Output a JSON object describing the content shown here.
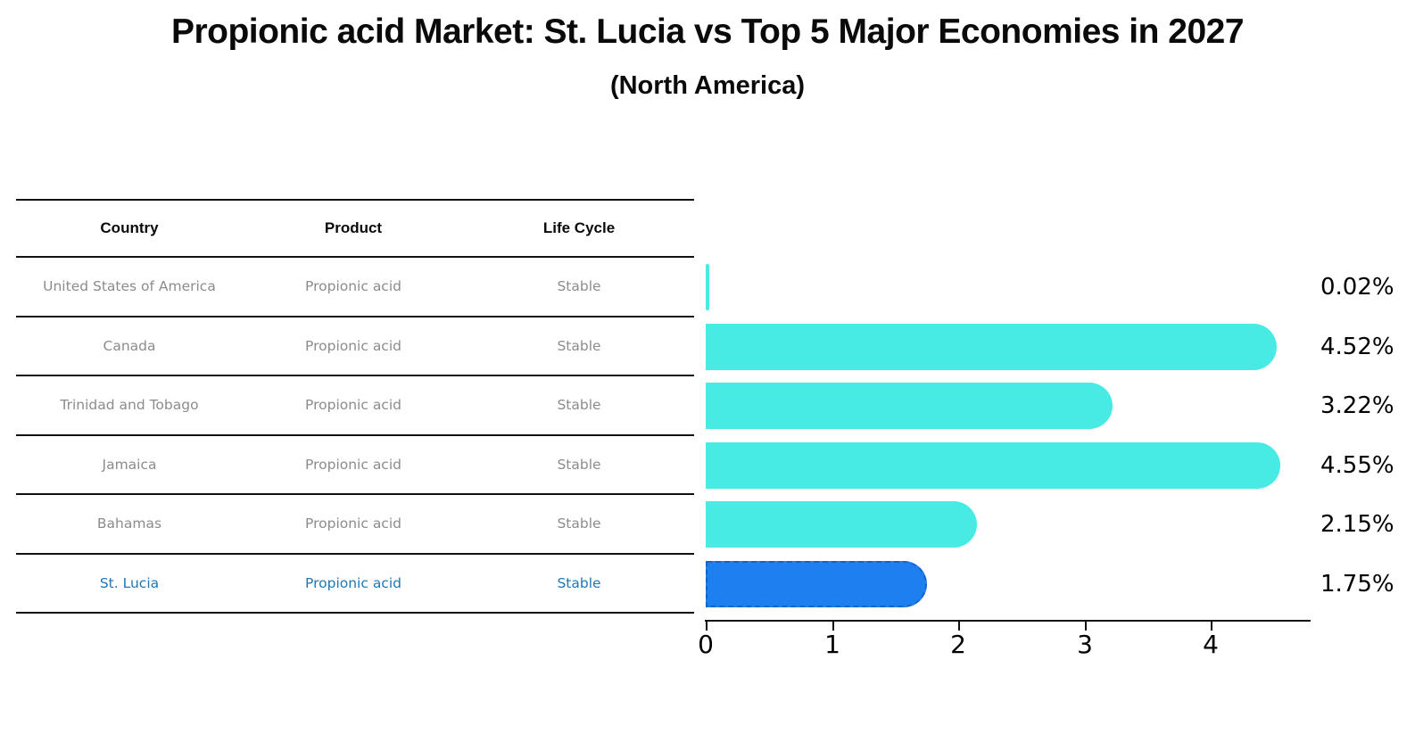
{
  "title": "Propionic acid Market: St. Lucia vs Top 5 Major Economies in 2027",
  "subtitle": "(North America)",
  "table": {
    "headers": [
      "Country",
      "Product",
      "Life Cycle"
    ],
    "rows": [
      {
        "country": "United States of America",
        "product": "Propionic acid",
        "life_cycle": "Stable",
        "highlighted": false
      },
      {
        "country": "Canada",
        "product": "Propionic acid",
        "life_cycle": "Stable",
        "highlighted": false
      },
      {
        "country": "Trinidad and Tobago",
        "product": "Propionic acid",
        "life_cycle": "Stable",
        "highlighted": false
      },
      {
        "country": "Jamaica",
        "product": "Propionic acid",
        "life_cycle": "Stable",
        "highlighted": false
      },
      {
        "country": "Bahamas",
        "product": "Propionic acid",
        "life_cycle": "Stable",
        "highlighted": false
      },
      {
        "country": "St. Lucia",
        "product": "Propionic acid",
        "life_cycle": "Stable",
        "highlighted": true
      }
    ]
  },
  "chart_data": {
    "type": "bar",
    "orientation": "horizontal",
    "title": "Propionic acid Market: St. Lucia vs Top 5 Major Economies in 2027",
    "subtitle": "(North America)",
    "categories": [
      "United States of America",
      "Canada",
      "Trinidad and Tobago",
      "Jamaica",
      "Bahamas",
      "St. Lucia"
    ],
    "values": [
      0.02,
      4.52,
      3.22,
      4.55,
      2.15,
      1.75
    ],
    "value_labels": [
      "0.02%",
      "4.52%",
      "3.22%",
      "4.55%",
      "2.15%",
      "1.75%"
    ],
    "highlight_index": 5,
    "xticks": [
      "0",
      "1",
      "2",
      "3",
      "4"
    ],
    "xlim": [
      0,
      4.8
    ],
    "grid": false,
    "legend": false,
    "colors": {
      "bar": "#48EBE4",
      "highlight_bar": "#1E80F0",
      "highlight_border": "#1563C9",
      "highlight_text": "#1f77b4",
      "table_text": "#8c8c8c",
      "header_text": "#0a0a0a",
      "axis": "#111111"
    }
  }
}
